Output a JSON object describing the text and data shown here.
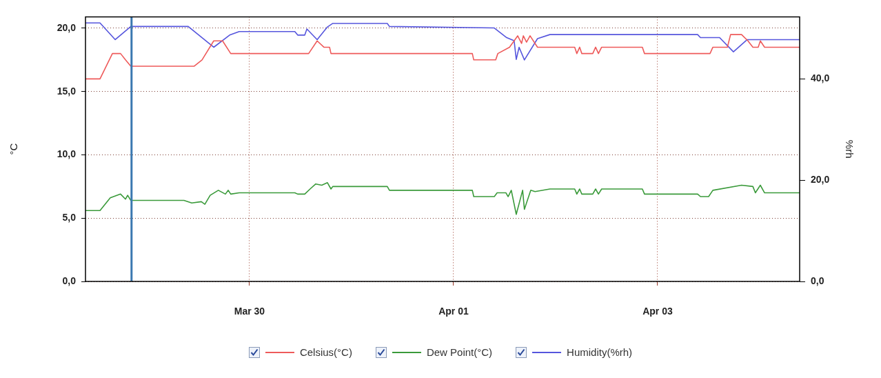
{
  "chart_data": {
    "type": "line",
    "ylabel": "°C",
    "y2label": "%rh",
    "xlim": [
      "--03-28T09:25",
      "--04-04T09:25"
    ],
    "xticks": [
      {
        "value": "--03-30",
        "label": "Mar 30"
      },
      {
        "value": "--04-01",
        "label": "Apr 01"
      },
      {
        "value": "--04-03",
        "label": "Apr 03"
      }
    ],
    "ylim": [
      0,
      20.9
    ],
    "yticks": [
      {
        "value": 0,
        "label": "0,0"
      },
      {
        "value": 5,
        "label": "5,0"
      },
      {
        "value": 10,
        "label": "10,0"
      },
      {
        "value": 15,
        "label": "15,0"
      },
      {
        "value": 20,
        "label": "20,0"
      }
    ],
    "y2lim": [
      0,
      52.2
    ],
    "y2ticks": [
      {
        "value": 0,
        "label": "0,0"
      },
      {
        "value": 20,
        "label": "20,0"
      },
      {
        "value": 40,
        "label": "40,0"
      }
    ],
    "grid": true,
    "legend": "bottom",
    "ref_lines": [
      {
        "axis": "x",
        "value": "--03-28T20:15",
        "label": null,
        "color": "#3a78b0"
      }
    ],
    "series": [
      {
        "name": "Celsius(°C)",
        "color": "#ee5a5a",
        "x": [
          "--03-28T09:25",
          "--03-28T12:50",
          "--03-28T15:45",
          "--03-28T17:40",
          "--03-28T18:50",
          "--03-28T20:05",
          "--03-29T11:00",
          "--03-29T12:50",
          "--03-29T15:35",
          "--03-29T17:40",
          "--03-29T19:35",
          "--03-30T13:55",
          "--03-30T15:55",
          "--03-30T17:30",
          "--03-30T18:50",
          "--03-30T19:10",
          "--04-01T04:25",
          "--04-01T04:45",
          "--04-01T09:55",
          "--04-01T10:25",
          "--04-01T13:10",
          "--04-01T15:05",
          "--04-01T16:00",
          "--04-01T16:25",
          "--04-01T17:10",
          "--04-01T18:00",
          "--04-01T19:45",
          "--04-02T04:30",
          "--04-02T05:00",
          "--04-02T05:40",
          "--04-02T06:10",
          "--04-02T08:45",
          "--04-02T09:25",
          "--04-02T10:05",
          "--04-02T10:50",
          "--04-02T20:25",
          "--04-02T20:55",
          "--04-03T12:20",
          "--04-03T13:00",
          "--04-03T16:25",
          "--04-03T17:10",
          "--04-03T19:45",
          "--04-03T21:15",
          "--04-03T22:25",
          "--04-03T23:40",
          "--04-04T00:10",
          "--04-04T01:10",
          "--04-04T09:25"
        ],
        "values": [
          16.0,
          16.0,
          18.0,
          18.0,
          17.5,
          17.0,
          17.0,
          17.5,
          19.0,
          19.0,
          18.0,
          18.0,
          19.0,
          18.5,
          18.5,
          18.0,
          18.0,
          17.5,
          17.5,
          18.0,
          18.5,
          19.4,
          18.8,
          19.4,
          18.9,
          19.4,
          18.5,
          18.5,
          18.0,
          18.5,
          18.0,
          18.0,
          18.5,
          18.0,
          18.5,
          18.5,
          18.0,
          18.0,
          18.5,
          18.5,
          19.5,
          19.5,
          19.0,
          18.5,
          18.5,
          19.0,
          18.5,
          18.5
        ]
      },
      {
        "name": "Dew Point(°C)",
        "color": "#3a9a3a",
        "x": [
          "--03-28T09:25",
          "--03-28T12:50",
          "--03-28T15:15",
          "--03-28T17:40",
          "--03-28T18:50",
          "--03-28T19:20",
          "--03-28T20:05",
          "--03-29T08:35",
          "--03-29T10:25",
          "--03-29T12:40",
          "--03-29T13:30",
          "--03-29T14:45",
          "--03-29T16:40",
          "--03-29T18:20",
          "--03-29T19:00",
          "--03-29T19:35",
          "--03-29T21:35",
          "--03-30T10:40",
          "--03-30T11:20",
          "--03-30T13:00",
          "--03-30T14:15",
          "--03-30T15:35",
          "--03-30T17:00",
          "--03-30T18:20",
          "--03-30T19:10",
          "--03-30T19:35",
          "--03-31T08:25",
          "--03-31T08:55",
          "--04-01T04:25",
          "--04-01T04:45",
          "--04-01T09:35",
          "--04-01T10:15",
          "--04-01T12:20",
          "--04-01T12:50",
          "--04-01T13:35",
          "--04-01T14:45",
          "--04-01T16:15",
          "--04-01T16:40",
          "--04-01T18:10",
          "--04-01T19:10",
          "--04-01T22:40",
          "--04-02T04:30",
          "--04-02T05:00",
          "--04-02T05:40",
          "--04-02T06:10",
          "--04-02T08:45",
          "--04-02T09:25",
          "--04-02T10:05",
          "--04-02T10:50",
          "--04-02T20:25",
          "--04-02T20:55",
          "--04-03T09:25",
          "--04-03T10:05",
          "--04-03T12:00",
          "--04-03T13:00",
          "--04-03T19:45",
          "--04-03T22:25",
          "--04-03T23:00",
          "--04-04T00:10",
          "--04-04T01:10",
          "--04-04T09:25"
        ],
        "values": [
          5.6,
          5.6,
          6.6,
          6.9,
          6.5,
          6.8,
          6.4,
          6.4,
          6.2,
          6.3,
          6.1,
          6.8,
          7.2,
          6.9,
          7.2,
          6.9,
          7.0,
          7.0,
          6.9,
          6.9,
          7.3,
          7.7,
          7.6,
          7.8,
          7.3,
          7.5,
          7.5,
          7.2,
          7.2,
          6.7,
          6.7,
          7.0,
          7.0,
          6.7,
          7.2,
          5.3,
          7.2,
          5.7,
          7.2,
          7.1,
          7.3,
          7.3,
          6.9,
          7.3,
          6.9,
          6.9,
          7.3,
          6.9,
          7.3,
          7.3,
          6.9,
          6.9,
          6.7,
          6.7,
          7.2,
          7.6,
          7.5,
          7.0,
          7.6,
          7.0,
          7.0
        ]
      },
      {
        "name": "Humidity(%rh)",
        "color": "#5555dd",
        "axis": "y2",
        "x": [
          "--03-28T09:25",
          "--03-28T12:50",
          "--03-28T16:25",
          "--03-28T20:05",
          "--03-29T09:35",
          "--03-29T15:35",
          "--03-29T19:20",
          "--03-29T21:35",
          "--03-30T10:40",
          "--03-30T11:20",
          "--03-30T13:00",
          "--03-30T13:30",
          "--03-30T15:55",
          "--03-30T18:20",
          "--03-30T19:35",
          "--03-31T08:25",
          "--03-31T08:55",
          "--04-01T09:35",
          "--04-01T12:30",
          "--04-01T14:15",
          "--04-01T14:45",
          "--04-01T15:25",
          "--04-01T16:40",
          "--04-01T19:45",
          "--04-01T22:40",
          "--04-03T09:25",
          "--04-03T10:05",
          "--04-03T14:35",
          "--04-03T17:50",
          "--04-03T21:05",
          "--04-04T09:25"
        ],
        "values": [
          51.0,
          51.0,
          47.7,
          50.3,
          50.3,
          46.2,
          48.6,
          49.3,
          49.3,
          48.6,
          48.6,
          49.8,
          47.7,
          50.2,
          50.9,
          50.9,
          50.3,
          50.0,
          48.1,
          47.5,
          43.8,
          46.2,
          43.7,
          47.9,
          48.7,
          48.7,
          48.1,
          48.1,
          45.3,
          47.7,
          47.7
        ]
      }
    ]
  }
}
